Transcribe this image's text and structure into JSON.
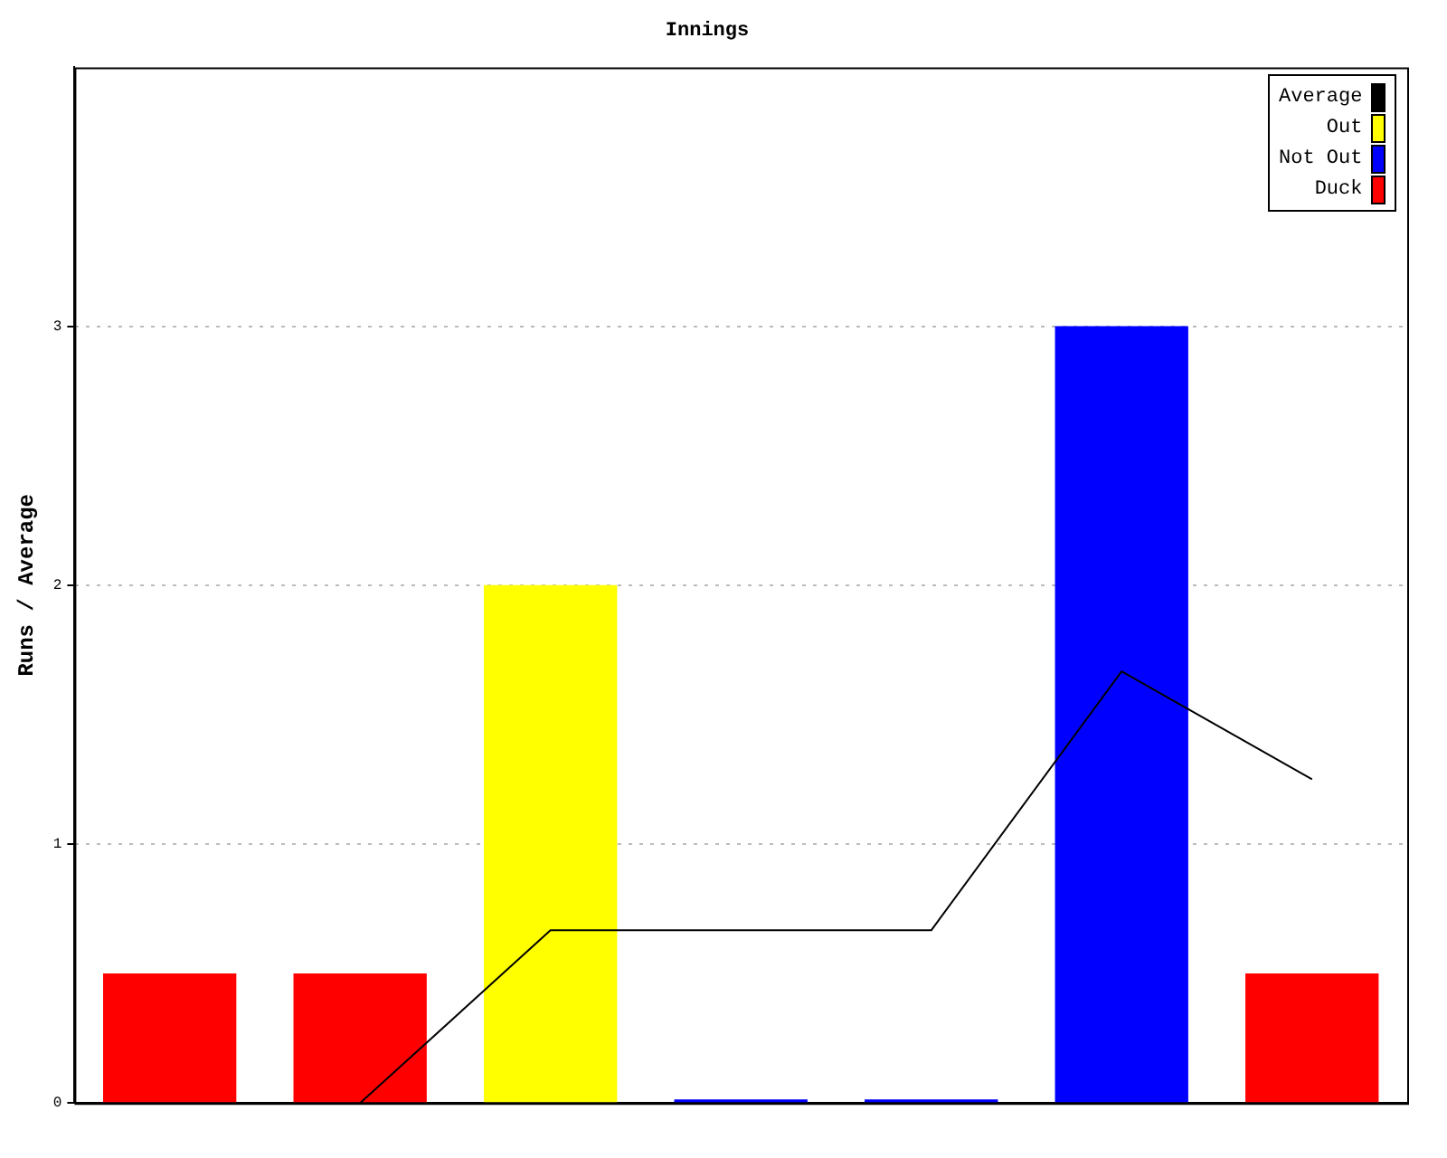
{
  "chart_data": {
    "type": "bar",
    "title": "Innings",
    "ylabel": "Runs / Average",
    "categories": [
      null,
      null,
      null,
      null,
      null,
      null,
      null
    ],
    "series": [
      {
        "name": "Average",
        "type": "line",
        "color": "#000000",
        "values": [
          null,
          0,
          0.667,
          0.667,
          0.667,
          1.667,
          1.25
        ]
      },
      {
        "name": "Out",
        "color": "#ffff00",
        "values": [
          null,
          null,
          2,
          null,
          null,
          null,
          null
        ]
      },
      {
        "name": "Not Out",
        "color": "#0000ff",
        "values": [
          null,
          null,
          null,
          0,
          0,
          3,
          null
        ]
      },
      {
        "name": "Duck",
        "color": "#ff0000",
        "values": [
          0.5,
          0.5,
          null,
          null,
          null,
          null,
          0.5
        ]
      }
    ],
    "stacked": true,
    "ylim": [
      0,
      4
    ],
    "yticks": [
      0,
      1,
      2,
      3
    ],
    "grid": "y",
    "legend": "top right",
    "marker": "none"
  }
}
